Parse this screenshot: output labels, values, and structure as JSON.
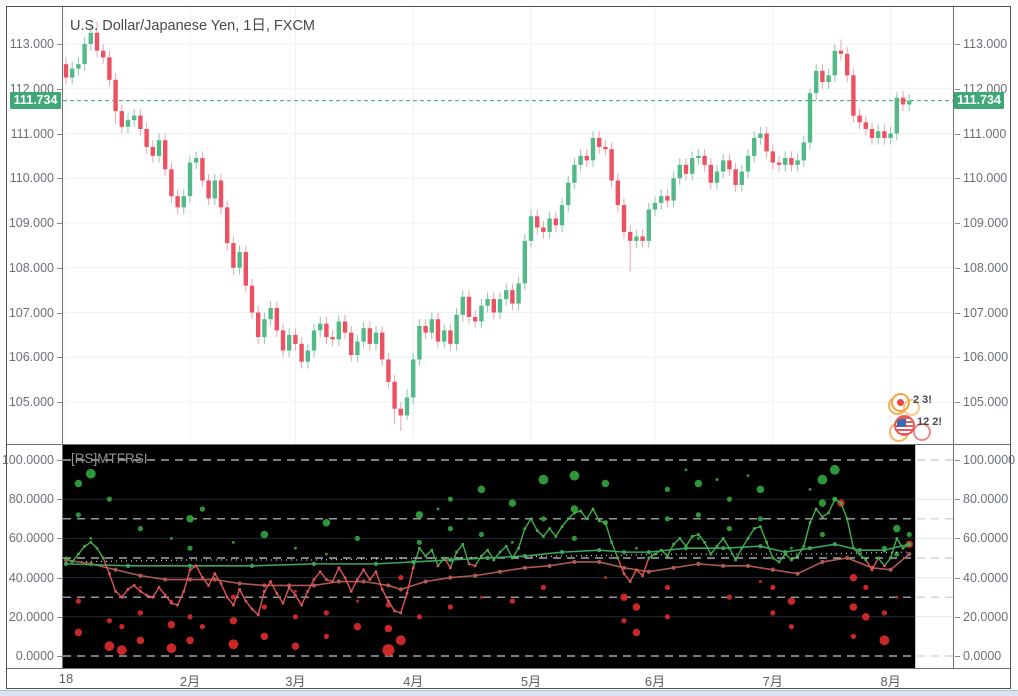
{
  "header": {
    "symbol_title": "U.S. Dollar/Japanese Yen, 1日, FXCM"
  },
  "indicator": {
    "label": "[RS]MTFRSI"
  },
  "last_price": {
    "value": "111.734"
  },
  "events": {
    "row1_label": "2 3!",
    "row2_label": "12 2!",
    "row1_icon": "japan-flag-circle",
    "row2_icon": "us-flag-circle"
  },
  "colors": {
    "accent_green": "#3fa876",
    "candle_up": "#53b987",
    "candle_down": "#eb5160",
    "wick_up": "#8cc7ab",
    "wick_down": "#f0a0aa",
    "grid": "#edf1f7",
    "grid_blue": "#dfe8f2",
    "grid_on_black": "#202a36",
    "dashed_level": "#c4c8cf",
    "axis_text": "#6a7077",
    "rsi_bg": "#000000",
    "dot_green": "#2f9e3c",
    "dot_red": "#d42a2a",
    "fast_green": "#43b049",
    "fast_red": "#e05555",
    "slow_line": "#ad5a50",
    "mid_line": "#3da45c",
    "white_dots": "#d8d8d8"
  },
  "chart_data": [
    {
      "type": "candlestick",
      "pane": "price",
      "title": "U.S. Dollar/Japanese Yen, 1日, FXCM",
      "ylim": [
        104.0,
        113.85
      ],
      "y_ticks": [
        105,
        106,
        107,
        108,
        109,
        110,
        111,
        112,
        113
      ],
      "x_ticks": [
        {
          "i": 0,
          "label": "18"
        },
        {
          "i": 20,
          "label": "2月"
        },
        {
          "i": 37,
          "label": "3月"
        },
        {
          "i": 56,
          "label": "4月"
        },
        {
          "i": 75,
          "label": "5月"
        },
        {
          "i": 95,
          "label": "6月"
        },
        {
          "i": 114,
          "label": "7月"
        },
        {
          "i": 133,
          "label": "8月"
        }
      ],
      "last_price": 111.734,
      "open_rule": "previous_close",
      "first_open": 112.55,
      "default_wick": 0.15,
      "closes": [
        112.25,
        112.45,
        112.55,
        113.0,
        113.25,
        112.85,
        112.7,
        112.2,
        111.5,
        111.15,
        111.3,
        111.4,
        111.1,
        110.7,
        110.5,
        110.85,
        110.2,
        109.6,
        109.35,
        109.6,
        110.35,
        110.45,
        109.95,
        109.55,
        109.95,
        109.35,
        108.55,
        108.0,
        108.35,
        107.6,
        107.0,
        106.45,
        106.85,
        107.1,
        106.6,
        106.15,
        106.5,
        106.3,
        105.9,
        106.15,
        106.6,
        106.75,
        106.45,
        106.4,
        106.8,
        106.55,
        106.05,
        106.35,
        106.65,
        106.3,
        106.55,
        105.95,
        105.45,
        104.85,
        104.7,
        105.1,
        105.95,
        106.7,
        106.55,
        106.85,
        106.35,
        106.6,
        106.3,
        106.95,
        107.35,
        106.9,
        106.8,
        107.15,
        107.3,
        107.0,
        107.3,
        107.5,
        107.2,
        107.65,
        108.6,
        109.15,
        108.9,
        108.8,
        109.1,
        108.95,
        109.4,
        109.9,
        110.3,
        110.5,
        110.4,
        110.9,
        110.7,
        110.65,
        109.95,
        109.4,
        108.8,
        108.6,
        108.7,
        108.6,
        109.3,
        109.45,
        109.6,
        109.5,
        110.0,
        110.3,
        110.1,
        110.45,
        110.5,
        110.3,
        109.9,
        110.15,
        110.4,
        110.2,
        109.85,
        110.15,
        110.5,
        110.9,
        111.0,
        110.6,
        110.35,
        110.3,
        110.45,
        110.3,
        110.4,
        110.8,
        111.9,
        112.4,
        112.15,
        112.3,
        112.85,
        112.78,
        112.3,
        111.4,
        111.25,
        111.1,
        110.9,
        111.05,
        110.9,
        111.0,
        111.8,
        111.65,
        111.73
      ],
      "wick_overrides": {
        "4": [
          113.45,
          null
        ],
        "5": [
          113.5,
          null
        ],
        "8": [
          null,
          111.2
        ],
        "53": [
          null,
          104.5
        ],
        "54": [
          null,
          104.35
        ],
        "55": [
          105.3,
          104.6
        ],
        "91": [
          null,
          107.9
        ],
        "120": [
          112.0,
          null
        ],
        "125": [
          113.1,
          null
        ],
        "134": [
          111.92,
          null
        ]
      }
    },
    {
      "type": "rsi_mtf_scatter",
      "pane": "indicator",
      "title": "[RS]MTFRSI",
      "ylim": [
        -7.6,
        107.6
      ],
      "y_ticks": [
        0,
        20,
        40,
        60,
        80,
        100
      ],
      "dashed_levels": [
        0,
        30,
        50,
        70,
        100
      ],
      "solid_levels": [
        20,
        40,
        60,
        80
      ],
      "fast_color_threshold": 48,
      "fast": [
        50,
        48,
        52,
        56,
        58,
        55,
        50,
        42,
        33,
        30,
        34,
        36,
        33,
        31,
        30,
        35,
        31,
        27,
        26,
        33,
        44,
        46,
        40,
        36,
        42,
        37,
        30,
        26,
        34,
        28,
        24,
        21,
        33,
        38,
        32,
        27,
        35,
        31,
        26,
        33,
        39,
        43,
        39,
        38,
        45,
        40,
        33,
        39,
        44,
        39,
        43,
        34,
        28,
        23,
        22,
        32,
        45,
        55,
        51,
        54,
        46,
        50,
        45,
        53,
        57,
        47,
        46,
        51,
        54,
        49,
        53,
        56,
        50,
        55,
        65,
        70,
        64,
        61,
        65,
        61,
        66,
        70,
        73,
        74,
        70,
        75,
        69,
        68,
        58,
        50,
        42,
        38,
        44,
        41,
        50,
        52,
        54,
        51,
        57,
        60,
        56,
        61,
        62,
        58,
        52,
        56,
        60,
        55,
        49,
        55,
        60,
        65,
        66,
        58,
        50,
        48,
        52,
        49,
        51,
        56,
        68,
        75,
        71,
        73,
        80,
        78,
        70,
        55,
        52,
        49,
        44,
        50,
        46,
        50,
        60,
        55,
        57
      ],
      "slow_points": [
        [
          0,
          49
        ],
        [
          4,
          47
        ],
        [
          8,
          44
        ],
        [
          12,
          41
        ],
        [
          16,
          39
        ],
        [
          20,
          39
        ],
        [
          24,
          39
        ],
        [
          28,
          37
        ],
        [
          32,
          36
        ],
        [
          36,
          36
        ],
        [
          40,
          36
        ],
        [
          44,
          38
        ],
        [
          48,
          38
        ],
        [
          52,
          36
        ],
        [
          54,
          34
        ],
        [
          58,
          38
        ],
        [
          62,
          40
        ],
        [
          66,
          41
        ],
        [
          70,
          43
        ],
        [
          74,
          45
        ],
        [
          78,
          46
        ],
        [
          82,
          48
        ],
        [
          86,
          48
        ],
        [
          90,
          45
        ],
        [
          94,
          43
        ],
        [
          98,
          45
        ],
        [
          102,
          47
        ],
        [
          106,
          46
        ],
        [
          110,
          46
        ],
        [
          114,
          44
        ],
        [
          118,
          42
        ],
        [
          122,
          48
        ],
        [
          126,
          50
        ],
        [
          130,
          45
        ],
        [
          133,
          44
        ],
        [
          136,
          52
        ]
      ],
      "mid_points": [
        [
          0,
          47
        ],
        [
          10,
          46
        ],
        [
          20,
          46
        ],
        [
          30,
          46
        ],
        [
          40,
          47
        ],
        [
          50,
          47
        ],
        [
          56,
          48
        ],
        [
          62,
          49
        ],
        [
          68,
          50
        ],
        [
          74,
          51
        ],
        [
          80,
          53
        ],
        [
          86,
          54
        ],
        [
          90,
          53
        ],
        [
          94,
          53
        ],
        [
          100,
          55
        ],
        [
          106,
          55
        ],
        [
          112,
          56
        ],
        [
          116,
          53
        ],
        [
          120,
          55
        ],
        [
          124,
          57
        ],
        [
          128,
          54
        ],
        [
          132,
          54
        ],
        [
          136,
          57
        ]
      ],
      "white_points": [
        [
          0,
          48
        ],
        [
          20,
          49
        ],
        [
          40,
          49
        ],
        [
          60,
          50
        ],
        [
          80,
          51
        ],
        [
          100,
          52
        ],
        [
          120,
          52
        ],
        [
          136,
          53
        ]
      ],
      "dots": [
        [
          2,
          88,
          3,
          "g"
        ],
        [
          2,
          72,
          2,
          "g"
        ],
        [
          2,
          12,
          3,
          "r"
        ],
        [
          2,
          28,
          2,
          "r"
        ],
        [
          4,
          93,
          4,
          "g"
        ],
        [
          4,
          60,
          1,
          "g"
        ],
        [
          7,
          80,
          2,
          "g"
        ],
        [
          7,
          5,
          4,
          "r"
        ],
        [
          7,
          18,
          2,
          "r"
        ],
        [
          9,
          3,
          4,
          "r"
        ],
        [
          9,
          15,
          2,
          "r"
        ],
        [
          9,
          30,
          1,
          "r"
        ],
        [
          12,
          8,
          3,
          "r"
        ],
        [
          12,
          22,
          2,
          "r"
        ],
        [
          12,
          35,
          1,
          "r"
        ],
        [
          12,
          65,
          2,
          "g"
        ],
        [
          17,
          4,
          4,
          "r"
        ],
        [
          17,
          16,
          3,
          "r"
        ],
        [
          17,
          28,
          1,
          "r"
        ],
        [
          17,
          60,
          1,
          "g"
        ],
        [
          20,
          70,
          3,
          "g"
        ],
        [
          20,
          55,
          2,
          "g"
        ],
        [
          20,
          20,
          2,
          "r"
        ],
        [
          20,
          8,
          3,
          "r"
        ],
        [
          22,
          75,
          2,
          "g"
        ],
        [
          22,
          15,
          2,
          "r"
        ],
        [
          27,
          6,
          4,
          "r"
        ],
        [
          27,
          18,
          3,
          "r"
        ],
        [
          27,
          30,
          2,
          "r"
        ],
        [
          27,
          58,
          1,
          "g"
        ],
        [
          32,
          62,
          3,
          "g"
        ],
        [
          32,
          10,
          3,
          "r"
        ],
        [
          32,
          25,
          2,
          "r"
        ],
        [
          37,
          5,
          3,
          "r"
        ],
        [
          37,
          20,
          2,
          "r"
        ],
        [
          37,
          33,
          1,
          "r"
        ],
        [
          37,
          55,
          1,
          "g"
        ],
        [
          42,
          68,
          3,
          "g"
        ],
        [
          42,
          52,
          1,
          "g"
        ],
        [
          42,
          22,
          2,
          "r"
        ],
        [
          42,
          10,
          2,
          "r"
        ],
        [
          47,
          60,
          2,
          "g"
        ],
        [
          47,
          15,
          3,
          "r"
        ],
        [
          47,
          28,
          1,
          "r"
        ],
        [
          52,
          3,
          5,
          "r"
        ],
        [
          52,
          14,
          3,
          "r"
        ],
        [
          52,
          26,
          2,
          "r"
        ],
        [
          54,
          8,
          4,
          "r"
        ],
        [
          54,
          40,
          2,
          "r"
        ],
        [
          57,
          72,
          3,
          "g"
        ],
        [
          57,
          58,
          2,
          "g"
        ],
        [
          57,
          20,
          2,
          "r"
        ],
        [
          60,
          75,
          1,
          "g"
        ],
        [
          62,
          80,
          2,
          "g"
        ],
        [
          62,
          65,
          2,
          "g"
        ],
        [
          62,
          25,
          2,
          "r"
        ],
        [
          65,
          70,
          1,
          "g"
        ],
        [
          67,
          85,
          3,
          "g"
        ],
        [
          67,
          62,
          2,
          "g"
        ],
        [
          67,
          30,
          1,
          "r"
        ],
        [
          72,
          78,
          3,
          "g"
        ],
        [
          72,
          58,
          1,
          "g"
        ],
        [
          72,
          28,
          2,
          "r"
        ],
        [
          77,
          90,
          4,
          "g"
        ],
        [
          77,
          70,
          2,
          "g"
        ],
        [
          77,
          35,
          2,
          "r"
        ],
        [
          82,
          92,
          4,
          "g"
        ],
        [
          82,
          75,
          3,
          "g"
        ],
        [
          82,
          60,
          2,
          "g"
        ],
        [
          87,
          88,
          3,
          "g"
        ],
        [
          87,
          68,
          2,
          "g"
        ],
        [
          87,
          40,
          1,
          "r"
        ],
        [
          90,
          30,
          3,
          "r"
        ],
        [
          90,
          18,
          2,
          "r"
        ],
        [
          92,
          25,
          3,
          "r"
        ],
        [
          92,
          12,
          3,
          "r"
        ],
        [
          92,
          55,
          1,
          "g"
        ],
        [
          97,
          85,
          2,
          "g"
        ],
        [
          97,
          70,
          2,
          "g"
        ],
        [
          97,
          35,
          2,
          "r"
        ],
        [
          97,
          20,
          2,
          "r"
        ],
        [
          100,
          95,
          1,
          "g"
        ],
        [
          102,
          88,
          3,
          "g"
        ],
        [
          102,
          72,
          2,
          "g"
        ],
        [
          102,
          60,
          1,
          "g"
        ],
        [
          105,
          90,
          1,
          "g"
        ],
        [
          107,
          80,
          2,
          "g"
        ],
        [
          107,
          65,
          2,
          "g"
        ],
        [
          107,
          30,
          2,
          "r"
        ],
        [
          110,
          92,
          1,
          "g"
        ],
        [
          112,
          85,
          3,
          "g"
        ],
        [
          112,
          70,
          2,
          "g"
        ],
        [
          112,
          38,
          1,
          "r"
        ],
        [
          114,
          35,
          2,
          "r"
        ],
        [
          114,
          22,
          2,
          "r"
        ],
        [
          117,
          28,
          3,
          "r"
        ],
        [
          117,
          15,
          2,
          "r"
        ],
        [
          117,
          55,
          1,
          "g"
        ],
        [
          120,
          85,
          1,
          "g"
        ],
        [
          122,
          90,
          4,
          "g"
        ],
        [
          122,
          78,
          3,
          "g"
        ],
        [
          122,
          62,
          2,
          "g"
        ],
        [
          124,
          95,
          4,
          "g"
        ],
        [
          124,
          80,
          2,
          "g"
        ],
        [
          125,
          78,
          3,
          "r"
        ],
        [
          127,
          40,
          3,
          "r"
        ],
        [
          127,
          25,
          3,
          "r"
        ],
        [
          127,
          10,
          2,
          "r"
        ],
        [
          129,
          20,
          3,
          "r"
        ],
        [
          129,
          35,
          2,
          "r"
        ],
        [
          132,
          8,
          4,
          "r"
        ],
        [
          132,
          22,
          2,
          "r"
        ],
        [
          132,
          55,
          2,
          "g"
        ],
        [
          134,
          65,
          3,
          "g"
        ],
        [
          134,
          52,
          2,
          "g"
        ],
        [
          134,
          30,
          1,
          "r"
        ],
        [
          136,
          57,
          3,
          "r"
        ],
        [
          136,
          62,
          2,
          "g"
        ]
      ]
    }
  ]
}
